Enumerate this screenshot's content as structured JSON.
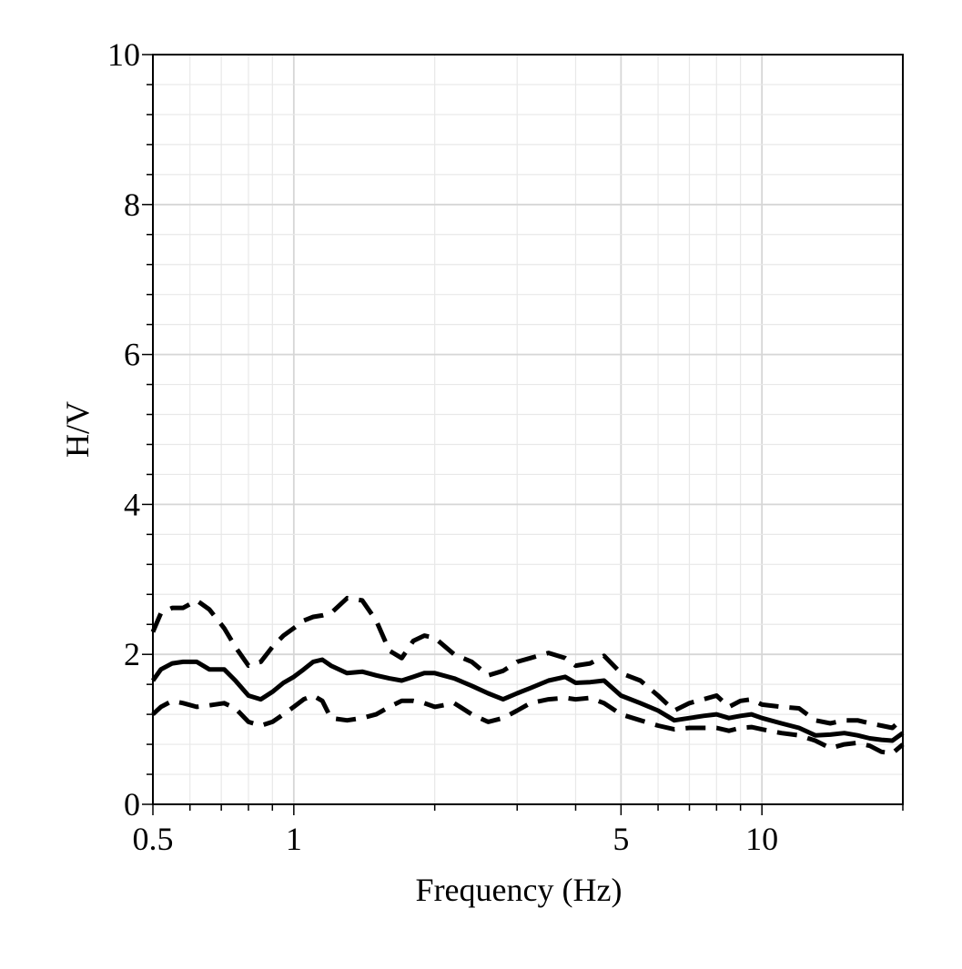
{
  "chart_data": {
    "type": "line",
    "title": "",
    "xlabel": "Frequency (Hz)",
    "ylabel": "H/V",
    "xscale": "log",
    "xlim": [
      0.5,
      20
    ],
    "ylim": [
      0,
      10
    ],
    "grid": true,
    "x_ticks": [
      {
        "value": 0.5,
        "label": "0.5"
      },
      {
        "value": 1,
        "label": "1"
      },
      {
        "value": 5,
        "label": "5"
      },
      {
        "value": 10,
        "label": "10"
      }
    ],
    "y_ticks": [
      {
        "value": 0,
        "label": "0"
      },
      {
        "value": 2,
        "label": "2"
      },
      {
        "value": 4,
        "label": "4"
      },
      {
        "value": 6,
        "label": "6"
      },
      {
        "value": 8,
        "label": "8"
      },
      {
        "value": 10,
        "label": "10"
      }
    ],
    "series": [
      {
        "style": "solid",
        "color": "#000000",
        "x": [
          0.5,
          0.52,
          0.55,
          0.58,
          0.62,
          0.66,
          0.71,
          0.75,
          0.8,
          0.85,
          0.9,
          0.95,
          1.0,
          1.05,
          1.1,
          1.15,
          1.2,
          1.3,
          1.4,
          1.5,
          1.6,
          1.7,
          1.8,
          1.9,
          2.0,
          2.2,
          2.4,
          2.6,
          2.8,
          3.0,
          3.2,
          3.5,
          3.8,
          4.0,
          4.3,
          4.6,
          5.0,
          5.5,
          6.0,
          6.5,
          7.0,
          7.5,
          8.0,
          8.5,
          9.0,
          9.5,
          10.0,
          11.0,
          12.0,
          13.0,
          14.0,
          15.0,
          16.0,
          17.0,
          18.0,
          19.0,
          20.0
        ],
        "y": [
          1.65,
          1.8,
          1.88,
          1.9,
          1.9,
          1.8,
          1.8,
          1.65,
          1.45,
          1.4,
          1.5,
          1.62,
          1.7,
          1.8,
          1.9,
          1.93,
          1.85,
          1.75,
          1.77,
          1.72,
          1.68,
          1.65,
          1.7,
          1.75,
          1.75,
          1.68,
          1.58,
          1.48,
          1.4,
          1.48,
          1.55,
          1.65,
          1.7,
          1.62,
          1.63,
          1.65,
          1.45,
          1.35,
          1.25,
          1.12,
          1.15,
          1.18,
          1.2,
          1.15,
          1.18,
          1.2,
          1.15,
          1.08,
          1.02,
          0.92,
          0.93,
          0.95,
          0.92,
          0.88,
          0.86,
          0.85,
          0.95
        ]
      },
      {
        "style": "dashed",
        "color": "#000000",
        "x": [
          0.5,
          0.52,
          0.55,
          0.58,
          0.62,
          0.66,
          0.71,
          0.75,
          0.8,
          0.85,
          0.9,
          0.95,
          1.0,
          1.05,
          1.1,
          1.15,
          1.2,
          1.3,
          1.4,
          1.5,
          1.6,
          1.7,
          1.8,
          1.9,
          2.0,
          2.2,
          2.4,
          2.6,
          2.8,
          3.0,
          3.2,
          3.5,
          3.8,
          4.0,
          4.3,
          4.6,
          5.0,
          5.5,
          6.0,
          6.5,
          7.0,
          7.5,
          8.0,
          8.5,
          9.0,
          9.5,
          10.0,
          11.0,
          12.0,
          13.0,
          14.0,
          15.0,
          16.0,
          17.0,
          18.0,
          19.0,
          20.0
        ],
        "y": [
          2.3,
          2.55,
          2.62,
          2.62,
          2.72,
          2.6,
          2.35,
          2.1,
          1.85,
          1.9,
          2.1,
          2.25,
          2.35,
          2.45,
          2.5,
          2.52,
          2.55,
          2.75,
          2.72,
          2.45,
          2.05,
          1.95,
          2.18,
          2.25,
          2.22,
          2.0,
          1.9,
          1.72,
          1.78,
          1.9,
          1.95,
          2.02,
          1.95,
          1.85,
          1.88,
          1.98,
          1.75,
          1.65,
          1.45,
          1.25,
          1.35,
          1.4,
          1.45,
          1.3,
          1.38,
          1.4,
          1.33,
          1.3,
          1.28,
          1.12,
          1.08,
          1.12,
          1.12,
          1.08,
          1.05,
          1.02,
          1.15
        ]
      },
      {
        "style": "dashed",
        "color": "#000000",
        "x": [
          0.5,
          0.52,
          0.55,
          0.58,
          0.62,
          0.66,
          0.71,
          0.75,
          0.8,
          0.85,
          0.9,
          0.95,
          1.0,
          1.05,
          1.1,
          1.15,
          1.2,
          1.3,
          1.4,
          1.5,
          1.6,
          1.7,
          1.8,
          1.9,
          2.0,
          2.2,
          2.4,
          2.6,
          2.8,
          3.0,
          3.2,
          3.5,
          3.8,
          4.0,
          4.3,
          4.6,
          5.0,
          5.5,
          6.0,
          6.5,
          7.0,
          7.5,
          8.0,
          8.5,
          9.0,
          9.5,
          10.0,
          11.0,
          12.0,
          13.0,
          14.0,
          15.0,
          16.0,
          17.0,
          18.0,
          19.0,
          20.0
        ],
        "y": [
          1.2,
          1.3,
          1.38,
          1.35,
          1.3,
          1.32,
          1.35,
          1.28,
          1.1,
          1.05,
          1.1,
          1.2,
          1.3,
          1.4,
          1.45,
          1.38,
          1.15,
          1.12,
          1.15,
          1.2,
          1.3,
          1.38,
          1.38,
          1.35,
          1.3,
          1.35,
          1.2,
          1.1,
          1.15,
          1.25,
          1.35,
          1.4,
          1.42,
          1.4,
          1.42,
          1.35,
          1.2,
          1.12,
          1.05,
          1.0,
          1.02,
          1.02,
          1.02,
          0.98,
          1.02,
          1.03,
          1.0,
          0.95,
          0.92,
          0.85,
          0.75,
          0.8,
          0.82,
          0.78,
          0.7,
          0.68,
          0.8
        ]
      }
    ]
  }
}
